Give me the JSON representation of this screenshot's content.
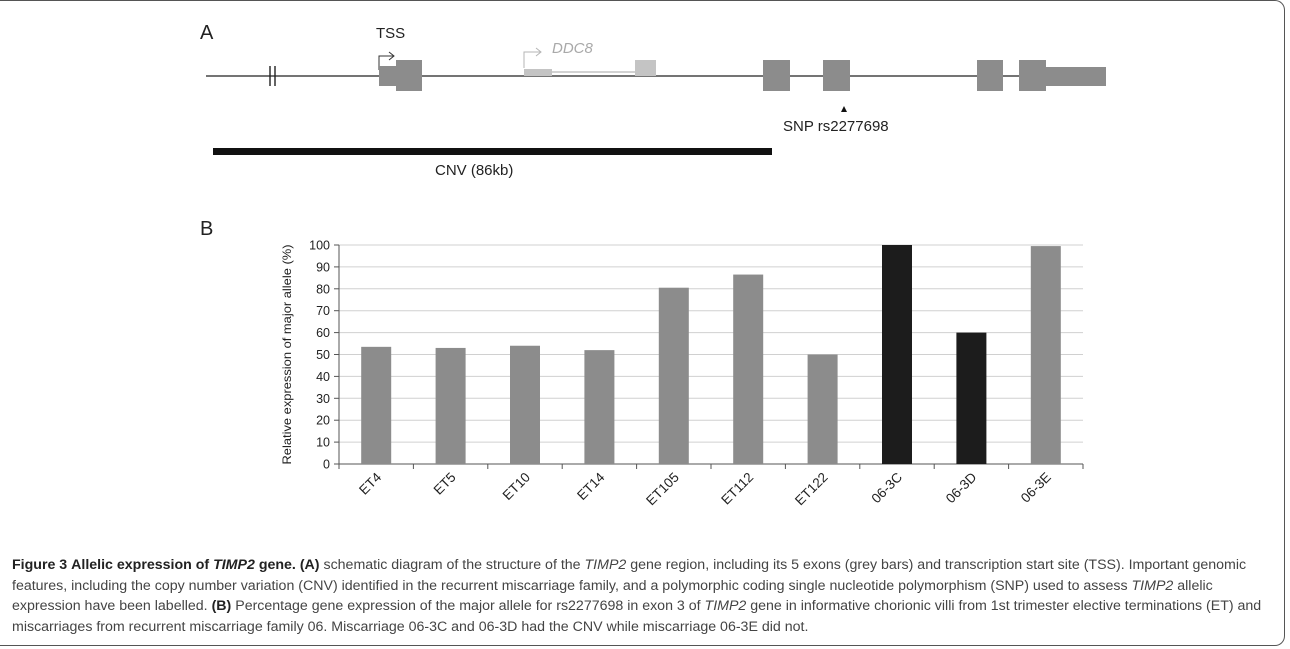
{
  "panel_a": {
    "letter": "A",
    "tss_label": "TSS",
    "ddc8_label": "DDC8",
    "snp_label": "SNP rs2277698",
    "cnv_label": "CNV (86kb)",
    "colors": {
      "exon": "#8c8c8c",
      "ddc8": "#c4c4c4",
      "cnv": "#111111",
      "line": "#222222"
    }
  },
  "panel_b": {
    "letter": "B"
  },
  "chart_data": {
    "type": "bar",
    "categories": [
      "ET4",
      "ET5",
      "ET10",
      "ET14",
      "ET105",
      "ET112",
      "ET122",
      "06-3C",
      "06-3D",
      "06-3E"
    ],
    "values": [
      53.5,
      53,
      54,
      52,
      80.5,
      86.5,
      50,
      100,
      60,
      99.5
    ],
    "bar_colors": [
      "#8c8c8c",
      "#8c8c8c",
      "#8c8c8c",
      "#8c8c8c",
      "#8c8c8c",
      "#8c8c8c",
      "#8c8c8c",
      "#1c1c1c",
      "#1c1c1c",
      "#8c8c8c"
    ],
    "yticks": [
      "0",
      "10",
      "20",
      "30",
      "40",
      "50",
      "60",
      "70",
      "80",
      "90",
      "100"
    ],
    "ylabel": "Relative expression of major allele (%)",
    "xlabel": "",
    "ylim": [
      0,
      100
    ],
    "grid": true
  },
  "caption": {
    "figure_number": "Figure 3",
    "title_pre": "Allelic expression of",
    "title_gene": "TIMP2",
    "title_post": "gene.",
    "a_marker": "(A)",
    "a_text_1": "schematic diagram of the structure of the",
    "gene": "TIMP2",
    "a_text_2": "gene region, including its 5 exons (grey bars) and transcription start site (TSS). Important genomic features, including the copy number variation (CNV) identified in the recurrent miscarriage family, and a polymorphic coding single nucleotide polymorphism (SNP) used to assess",
    "a_text_3": "allelic expression have been labelled.",
    "b_marker": "(B)",
    "b_text_1": "Percentage gene expression of the major allele for rs2277698 in exon 3 of",
    "b_text_2": "gene in informative chorionic villi from 1st trimester elective terminations (ET) and miscarriages from recurrent miscarriage family 06. Miscarriage 06-3C and 06-3D had the CNV while miscarriage 06-3E did not."
  }
}
